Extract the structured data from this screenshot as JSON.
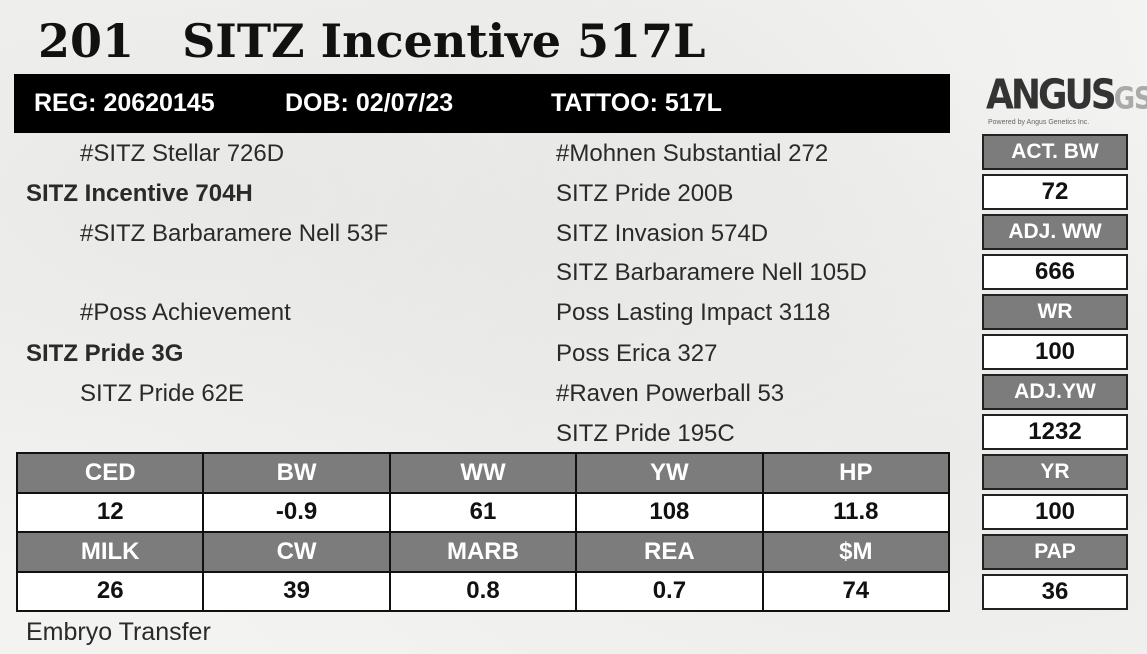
{
  "header": {
    "lot": "201",
    "name": "SITZ Incentive 517L",
    "reg": "REG: 20620145",
    "dob": "DOB: 02/07/23",
    "tattoo": "TATTOO: 517L"
  },
  "logo": {
    "word": "ANGUS",
    "suffix": "GS",
    "tagline": "Powered by Angus Genetics Inc."
  },
  "pedigree": {
    "sire_sire": "#SITZ Stellar 726D",
    "sire": "SITZ Incentive 704H",
    "sire_dam": "#SITZ Barbaramere Nell 53F",
    "dam_sire": "#Poss Achievement",
    "dam": "SITZ Pride 3G",
    "dam_dam": "SITZ Pride 62E",
    "ss_sire": "#Mohnen Substantial 272",
    "ss_dam": "SITZ Pride 200B",
    "sd_sire": "SITZ Invasion 574D",
    "sd_dam": "SITZ Barbaramere Nell 105D",
    "ds_sire": "Poss Lasting Impact 3118",
    "ds_dam": "Poss Erica 327",
    "dd_sire": "#Raven Powerball 53",
    "dd_dam": "SITZ Pride 195C"
  },
  "epds": {
    "row1_headers": [
      "CED",
      "BW",
      "WW",
      "YW",
      "HP"
    ],
    "row1_values": [
      "12",
      "-0.9",
      "61",
      "108",
      "11.8"
    ],
    "row2_headers": [
      "MILK",
      "CW",
      "MARB",
      "REA",
      "$M"
    ],
    "row2_values": [
      "26",
      "39",
      "0.8",
      "0.7",
      "74"
    ]
  },
  "performance": [
    {
      "label": "ACT. BW",
      "value": "72"
    },
    {
      "label": "ADJ. WW",
      "value": "666"
    },
    {
      "label": "WR",
      "value": "100"
    },
    {
      "label": "ADJ.YW",
      "value": "1232"
    },
    {
      "label": "YR",
      "value": "100"
    },
    {
      "label": "PAP",
      "value": "36"
    }
  ],
  "footer": "Embryo Transfer",
  "colors": {
    "bar": "#000000",
    "header_cell": "#7c7c7c",
    "value_cell": "#ffffff"
  }
}
